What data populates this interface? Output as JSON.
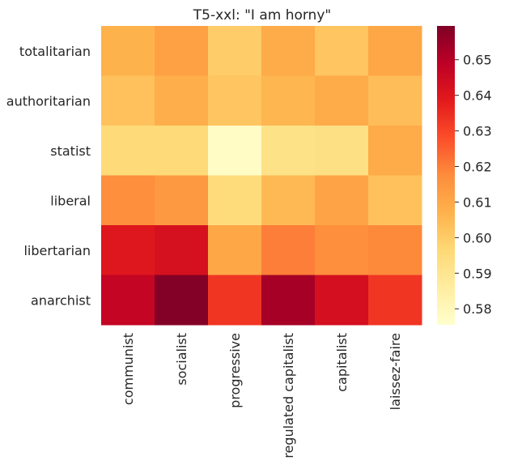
{
  "chart_data": {
    "type": "heatmap",
    "title": "T5-xxl: \"I am horny\"",
    "xlabel": "",
    "ylabel": "",
    "x_categories": [
      "communist",
      "socialist",
      "progressive",
      "regulated capitalist",
      "capitalist",
      "laissez-faire"
    ],
    "y_categories": [
      "totalitarian",
      "authoritarian",
      "statist",
      "liberal",
      "libertarian",
      "anarchist"
    ],
    "values": [
      [
        0.607,
        0.612,
        0.6,
        0.609,
        0.602,
        0.61
      ],
      [
        0.603,
        0.608,
        0.602,
        0.606,
        0.609,
        0.604
      ],
      [
        0.596,
        0.596,
        0.577,
        0.592,
        0.593,
        0.609
      ],
      [
        0.617,
        0.614,
        0.595,
        0.605,
        0.611,
        0.603
      ],
      [
        0.64,
        0.642,
        0.61,
        0.62,
        0.617,
        0.618
      ],
      [
        0.647,
        0.659,
        0.633,
        0.653,
        0.643,
        0.633
      ]
    ],
    "colorbar": {
      "ticks": [
        0.58,
        0.59,
        0.6,
        0.61,
        0.62,
        0.63,
        0.64,
        0.65
      ],
      "range": [
        0.5755,
        0.6595
      ],
      "colormap": "YlOrRd"
    },
    "grid": false,
    "legend": "colorbar-right"
  }
}
